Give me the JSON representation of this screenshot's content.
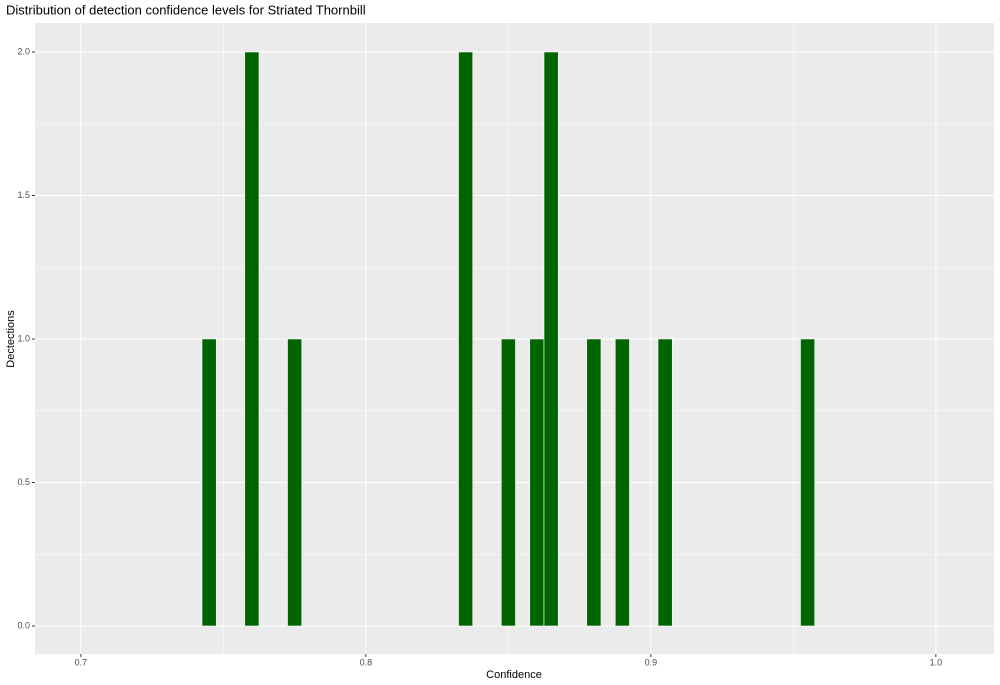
{
  "chart_data": {
    "type": "histogram",
    "title": "Distribution of detection confidence levels for Striated Thornbill",
    "x_label": "Confidence",
    "y_label": "Dectections",
    "bins": [
      0.7425,
      0.7475,
      0.7525,
      0.7575,
      0.7625,
      0.7675,
      0.7725,
      0.7775,
      0.7825,
      0.7875,
      0.7925,
      0.7975,
      0.8025,
      0.8075,
      0.8125,
      0.8175,
      0.8225,
      0.8275,
      0.8325,
      0.8375,
      0.8425,
      0.8475,
      0.8525,
      0.8575,
      0.8625,
      0.8675,
      0.8725,
      0.8775,
      0.8825,
      0.8875,
      0.8925,
      0.8975,
      0.9025,
      0.9075,
      0.9125,
      0.9175,
      0.9225,
      0.9275,
      0.9325,
      0.9375,
      0.9425,
      0.9475,
      0.9525,
      0.9575
    ],
    "values": [
      1,
      0,
      0,
      2,
      0,
      0,
      1,
      0,
      0,
      0,
      0,
      0,
      0,
      0,
      0,
      0,
      0,
      0,
      2,
      0,
      0,
      1,
      0,
      1,
      2,
      0,
      0,
      1,
      0,
      1,
      0,
      0,
      1,
      0,
      0,
      0,
      0,
      0,
      0,
      0,
      0,
      0,
      1
    ],
    "color": "#006400",
    "xlim": [
      0.6839,
      1.0204
    ],
    "xticks": [
      0.7,
      0.8,
      0.9,
      {
        "value": 1,
        "label": "1.0"
      }
    ],
    "ylim": [
      -0.0976,
      2.101
    ],
    "yticks": [
      {
        "value": 0,
        "label": "0.0"
      },
      0.5,
      {
        "value": 1,
        "label": "1.0"
      },
      1.5,
      {
        "value": 2,
        "label": "2.0"
      }
    ],
    "grid": true
  }
}
